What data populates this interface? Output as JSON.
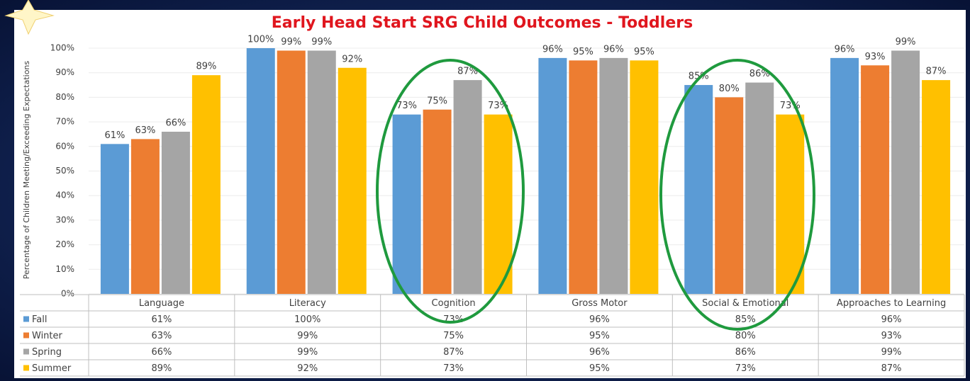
{
  "chart_data": {
    "type": "bar",
    "title": "Early Head Start SRG Child Outcomes - Toddlers",
    "y_label": "Percentage of Children Meeting/Exceeding Expectations",
    "categories": [
      "Language",
      "Literacy",
      "Cognition",
      "Gross Motor",
      "Social & Emotional",
      "Approaches to Learning"
    ],
    "series": [
      {
        "name": "Fall",
        "color": "#5b9bd5",
        "values": [
          61,
          100,
          73,
          96,
          85,
          96
        ],
        "value_labels": [
          "61%",
          "100%",
          "73%",
          "96%",
          "85%",
          "96%"
        ]
      },
      {
        "name": "Winter",
        "color": "#ed7d31",
        "values": [
          63,
          99,
          75,
          95,
          80,
          93
        ],
        "value_labels": [
          "63%",
          "99%",
          "75%",
          "95%",
          "80%",
          "93%"
        ]
      },
      {
        "name": "Spring",
        "color": "#a5a5a5",
        "values": [
          66,
          99,
          87,
          96,
          86,
          99
        ],
        "value_labels": [
          "66%",
          "99%",
          "87%",
          "96%",
          "86%",
          "99%"
        ]
      },
      {
        "name": "Summer",
        "color": "#ffc000",
        "values": [
          89,
          92,
          73,
          95,
          73,
          87
        ],
        "value_labels": [
          "89%",
          "92%",
          "73%",
          "95%",
          "73%",
          "87%"
        ]
      }
    ],
    "ylim": [
      0,
      100
    ],
    "yticks": [
      {
        "value": 0,
        "label": "0%"
      },
      {
        "value": 10,
        "label": "10%"
      },
      {
        "value": 20,
        "label": "20%"
      },
      {
        "value": 30,
        "label": "30%"
      },
      {
        "value": 40,
        "label": "40%"
      },
      {
        "value": 50,
        "label": "50%"
      },
      {
        "value": 60,
        "label": "60%"
      },
      {
        "value": 70,
        "label": "70%"
      },
      {
        "value": 80,
        "label": "80%"
      },
      {
        "value": 90,
        "label": "90%"
      },
      {
        "value": 100,
        "label": "100%"
      }
    ],
    "grid": true
  }
}
